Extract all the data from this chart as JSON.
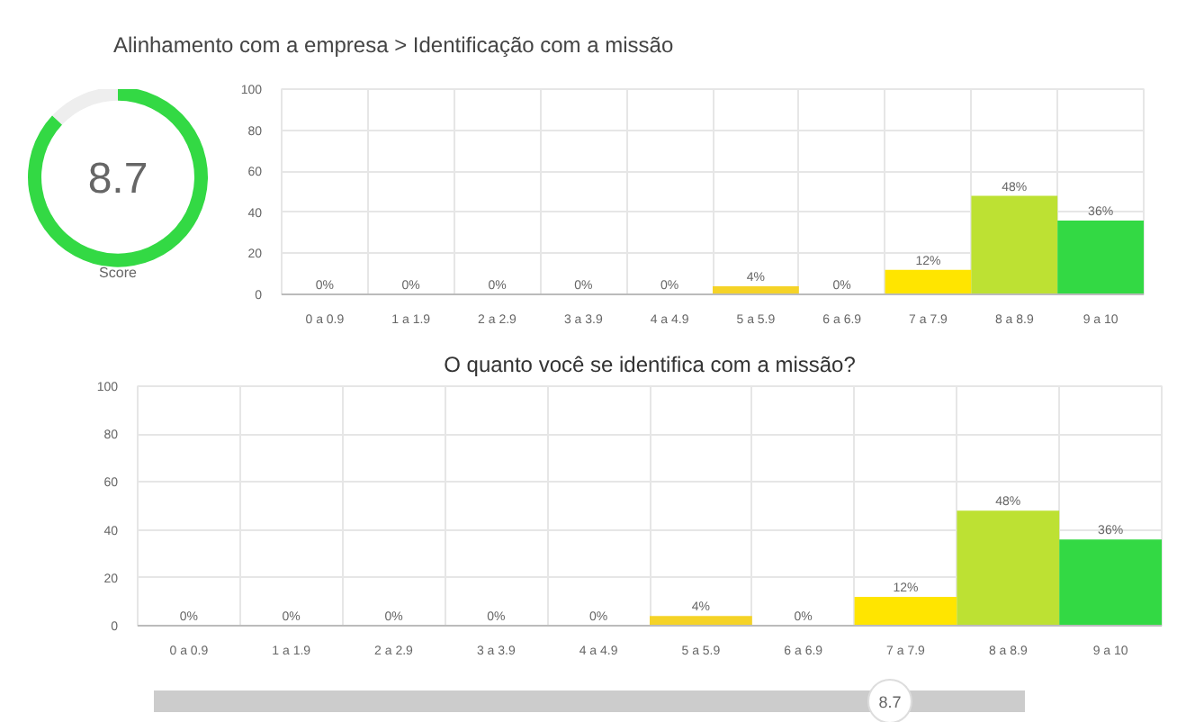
{
  "chart_data": [
    {
      "type": "donut",
      "title": "Alinhamento com a empresa > Identificação com a missão",
      "categories": [
        null,
        null
      ],
      "values": [
        87,
        13
      ],
      "colors": [
        "#33d944",
        "#eeeeee"
      ],
      "annotations": [
        "8.7",
        "Score"
      ]
    },
    {
      "type": "bar",
      "categories": [
        "0 a 0.9",
        "1 a 1.9",
        "2 a 2.9",
        "3 a 3.9",
        "4 a 4.9",
        "5 a 5.9",
        "6 a 6.9",
        "7 a 7.9",
        "8 a 8.9",
        "9 a 10"
      ],
      "values": [
        0,
        0,
        0,
        0,
        0,
        4,
        0,
        12,
        48,
        36
      ],
      "colors": [
        "#f44336",
        "#f44336",
        "#ff7043",
        "#ff7043",
        "#ffa726",
        "#f5d327",
        "#f5d327",
        "#ffe500",
        "#bde133",
        "#33d944"
      ],
      "value_labels": [
        "0%",
        "0%",
        "0%",
        "0%",
        "0%",
        "4%",
        "0%",
        "12%",
        "48%",
        "36%"
      ],
      "ylim": [
        0,
        100
      ],
      "yticks": [
        0,
        20,
        40,
        60,
        80,
        100
      ],
      "grid": true
    },
    {
      "type": "bar",
      "title": "O quanto você se identifica com a missão?",
      "categories": [
        "0 a 0.9",
        "1 a 1.9",
        "2 a 2.9",
        "3 a 3.9",
        "4 a 4.9",
        "5 a 5.9",
        "6 a 6.9",
        "7 a 7.9",
        "8 a 8.9",
        "9 a 10"
      ],
      "values": [
        0,
        0,
        0,
        0,
        0,
        4,
        0,
        12,
        48,
        36
      ],
      "colors": [
        "#f44336",
        "#f44336",
        "#ff7043",
        "#ff7043",
        "#ffa726",
        "#f5d327",
        "#f5d327",
        "#ffe500",
        "#bde133",
        "#33d944"
      ],
      "value_labels": [
        "0%",
        "0%",
        "0%",
        "0%",
        "0%",
        "4%",
        "0%",
        "12%",
        "48%",
        "36%"
      ],
      "ylim": [
        0,
        100
      ],
      "yticks": [
        0,
        20,
        40,
        60,
        80,
        100
      ],
      "grid": true
    },
    {
      "type": "other",
      "annotations": [
        "8.7"
      ]
    }
  ]
}
